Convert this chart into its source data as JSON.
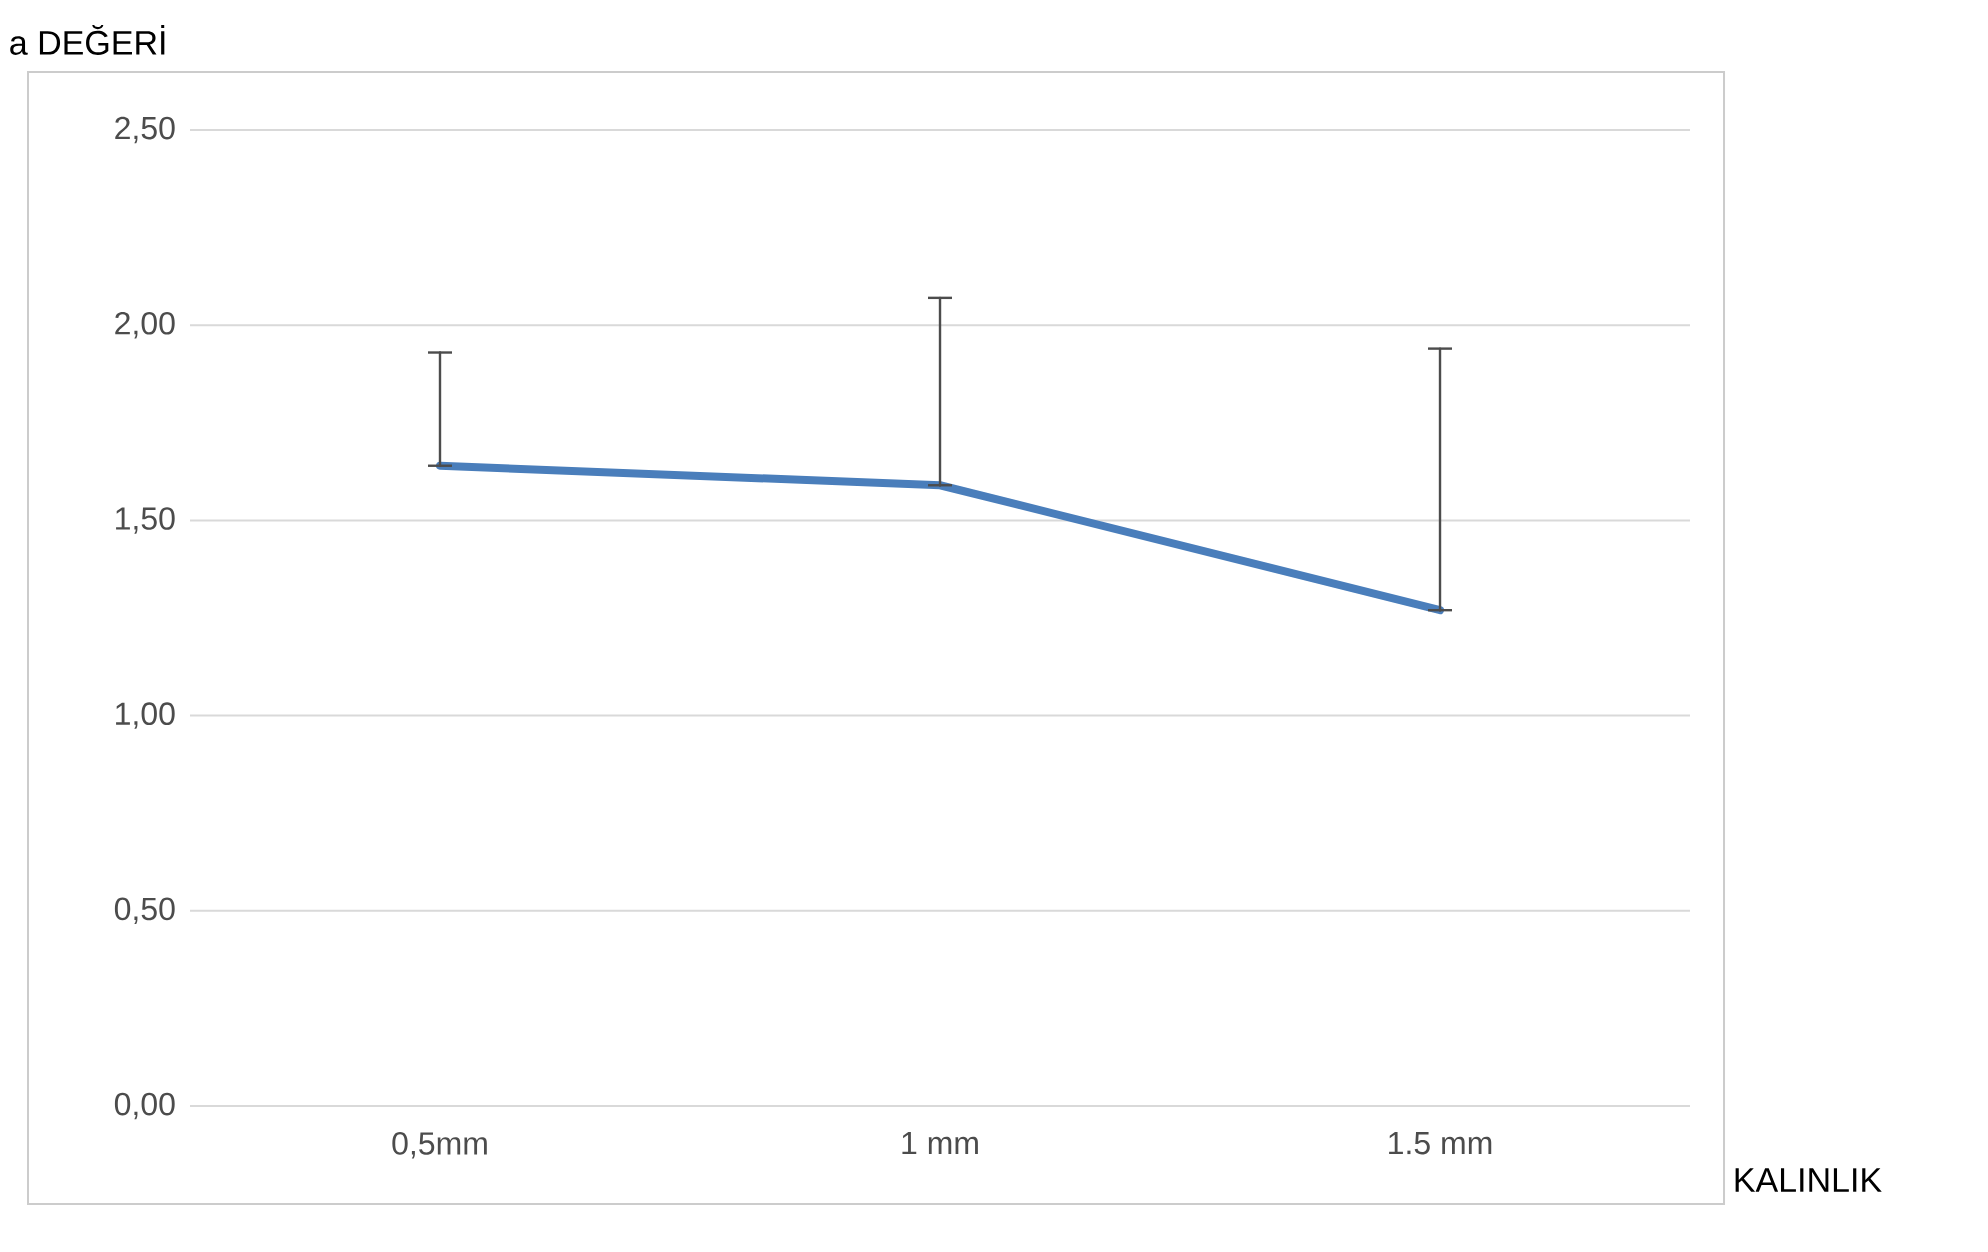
{
  "chart_data": {
    "type": "line",
    "categories": [
      "0,5mm",
      "1 mm",
      "1.5 mm"
    ],
    "values": [
      1.64,
      1.59,
      1.27
    ],
    "errors": [
      [
        1.64,
        1.93
      ],
      [
        1.59,
        2.07
      ],
      [
        1.27,
        1.94
      ]
    ],
    "color": "#4a7ebb",
    "xlabel": "KALINLIK",
    "ylabel": "a DEĞERİ",
    "ylim": [
      0,
      2.5
    ],
    "yticks": [
      {
        "value": 0,
        "label": "0,00"
      },
      {
        "value": 0.5,
        "label": "0,50"
      },
      {
        "value": 1,
        "label": "1,00"
      },
      {
        "value": 1.5,
        "label": "1,50"
      },
      {
        "value": 2,
        "label": "2,00"
      },
      {
        "value": 2.5,
        "label": "2,50"
      }
    ],
    "grid": "y"
  }
}
